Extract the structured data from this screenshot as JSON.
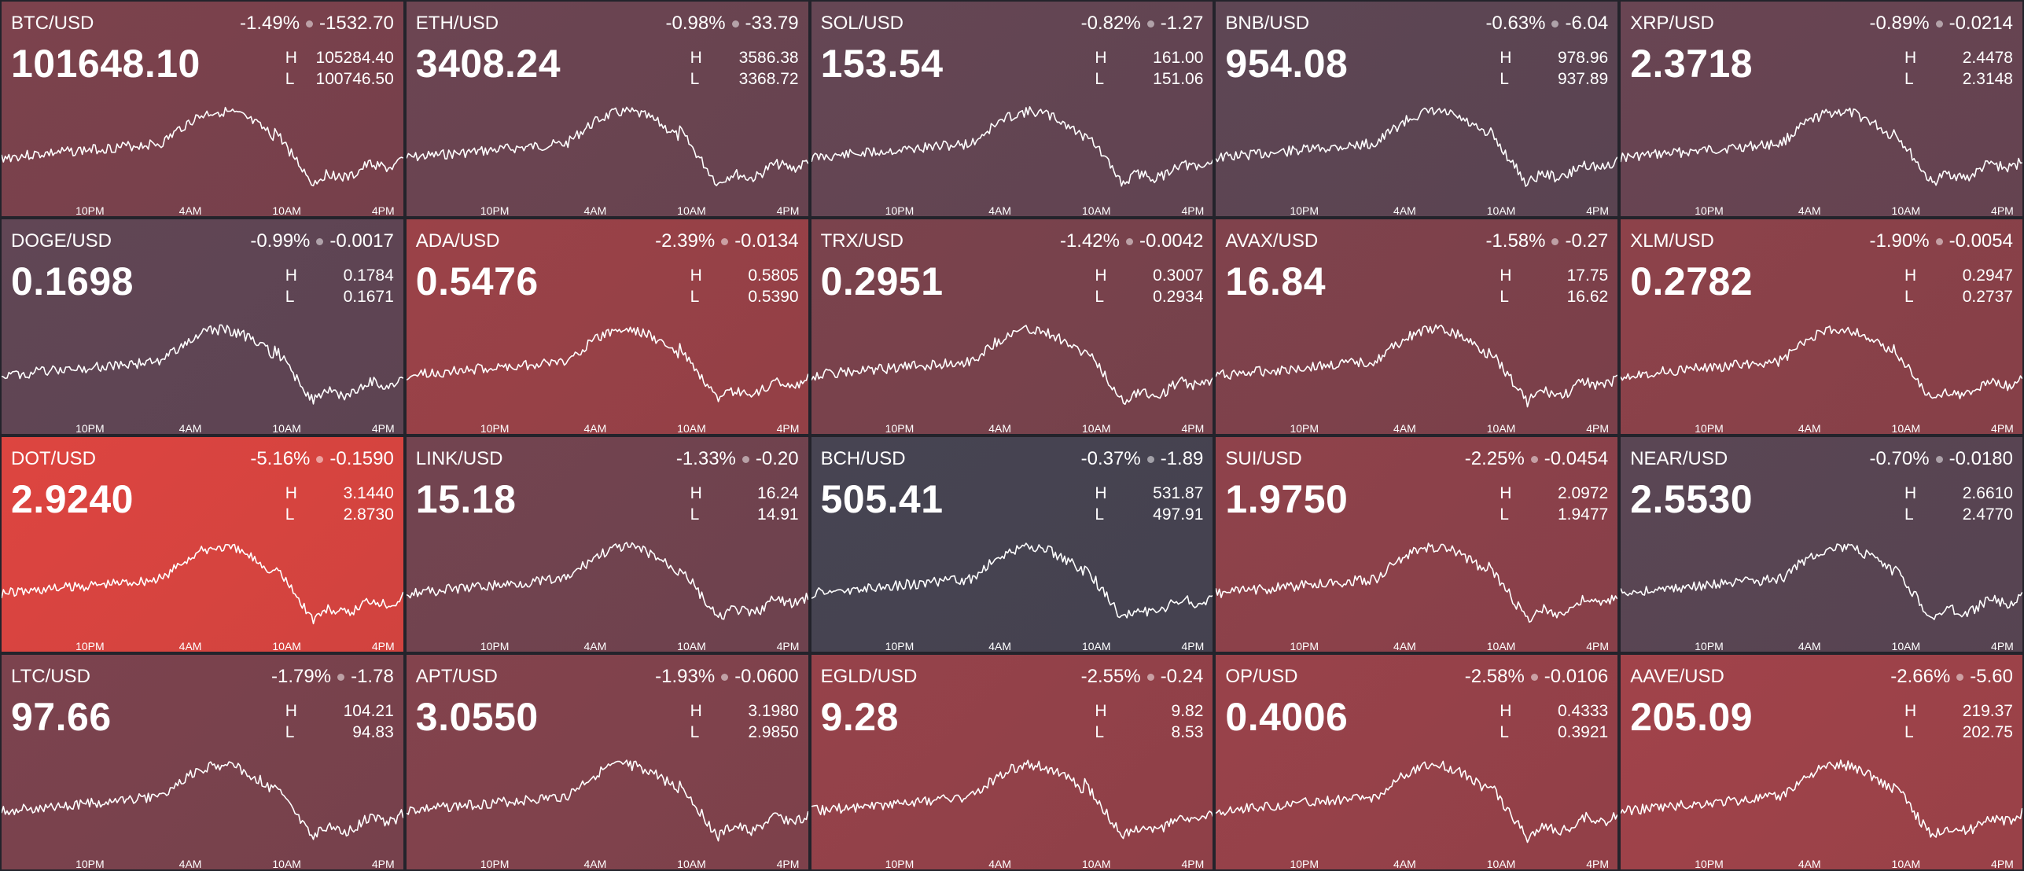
{
  "time_ticks": [
    "10PM",
    "4AM",
    "10AM",
    "4PM"
  ],
  "tiles": [
    {
      "symbol": "BTC/USD",
      "pct": "-1.49%",
      "change": "-1532.70",
      "price": "101648.10",
      "high": "H",
      "high_value": "105284.40",
      "low": "L",
      "low_value": "100746.50",
      "color": "#7c424d",
      "seed": 3
    },
    {
      "symbol": "ETH/USD",
      "pct": "-0.98%",
      "change": "-33.79",
      "price": "3408.24",
      "high": "H",
      "high_value": "3586.38",
      "low": "L",
      "low_value": "3368.72",
      "color": "#6c4552",
      "seed": 7
    },
    {
      "symbol": "SOL/USD",
      "pct": "-0.82%",
      "change": "-1.27",
      "price": "153.54",
      "high": "H",
      "high_value": "161.00",
      "low": "L",
      "low_value": "151.06",
      "color": "#654654",
      "seed": 11
    },
    {
      "symbol": "BNB/USD",
      "pct": "-0.63%",
      "change": "-6.04",
      "price": "954.08",
      "high": "H",
      "high_value": "978.96",
      "low": "L",
      "low_value": "937.89",
      "color": "#5e4654",
      "seed": 13
    },
    {
      "symbol": "XRP/USD",
      "pct": "-0.89%",
      "change": "-0.0214",
      "price": "2.3718",
      "high": "H",
      "high_value": "2.4478",
      "low": "L",
      "low_value": "2.3148",
      "color": "#694553",
      "seed": 17
    },
    {
      "symbol": "DOGE/USD",
      "pct": "-0.99%",
      "change": "-0.0017",
      "price": "0.1698",
      "high": "H",
      "high_value": "0.1784",
      "low": "L",
      "low_value": "0.1671",
      "color": "#614655",
      "seed": 19
    },
    {
      "symbol": "ADA/USD",
      "pct": "-2.39%",
      "change": "-0.0134",
      "price": "0.5476",
      "high": "H",
      "high_value": "0.5805",
      "low": "L",
      "low_value": "0.5390",
      "color": "#9b4248",
      "seed": 23
    },
    {
      "symbol": "TRX/USD",
      "pct": "-1.42%",
      "change": "-0.0042",
      "price": "0.2951",
      "high": "H",
      "high_value": "0.3007",
      "low": "L",
      "low_value": "0.2934",
      "color": "#7b434d",
      "seed": 29
    },
    {
      "symbol": "AVAX/USD",
      "pct": "-1.58%",
      "change": "-0.27",
      "price": "16.84",
      "high": "H",
      "high_value": "17.75",
      "low": "L",
      "low_value": "16.62",
      "color": "#80424c",
      "seed": 31
    },
    {
      "symbol": "XLM/USD",
      "pct": "-1.90%",
      "change": "-0.0054",
      "price": "0.2782",
      "high": "H",
      "high_value": "0.2947",
      "low": "L",
      "low_value": "0.2737",
      "color": "#8d424a",
      "seed": 37
    },
    {
      "symbol": "DOT/USD",
      "pct": "-5.16%",
      "change": "-0.1590",
      "price": "2.9240",
      "high": "H",
      "high_value": "3.1440",
      "low": "L",
      "low_value": "2.8730",
      "color": "#dd4540",
      "seed": 41
    },
    {
      "symbol": "LINK/USD",
      "pct": "-1.33%",
      "change": "-0.20",
      "price": "15.18",
      "high": "H",
      "high_value": "16.24",
      "low": "L",
      "low_value": "14.91",
      "color": "#734450",
      "seed": 43
    },
    {
      "symbol": "BCH/USD",
      "pct": "-0.37%",
      "change": "-1.89",
      "price": "505.41",
      "high": "H",
      "high_value": "531.87",
      "low": "L",
      "low_value": "497.91",
      "color": "#474452",
      "seed": 47
    },
    {
      "symbol": "SUI/USD",
      "pct": "-2.25%",
      "change": "-0.0454",
      "price": "1.9750",
      "high": "H",
      "high_value": "2.0972",
      "low": "L",
      "low_value": "1.9477",
      "color": "#8f424b",
      "seed": 53
    },
    {
      "symbol": "NEAR/USD",
      "pct": "-0.70%",
      "change": "-0.0180",
      "price": "2.5530",
      "high": "H",
      "high_value": "2.6610",
      "low": "L",
      "low_value": "2.4770",
      "color": "#5a4654",
      "seed": 59
    },
    {
      "symbol": "LTC/USD",
      "pct": "-1.79%",
      "change": "-1.78",
      "price": "97.66",
      "high": "H",
      "high_value": "104.21",
      "low": "L",
      "low_value": "94.83",
      "color": "#7c434e",
      "seed": 61
    },
    {
      "symbol": "APT/USD",
      "pct": "-1.93%",
      "change": "-0.0600",
      "price": "3.0550",
      "high": "H",
      "high_value": "3.1980",
      "low": "L",
      "low_value": "2.9850",
      "color": "#83434d",
      "seed": 67
    },
    {
      "symbol": "EGLD/USD",
      "pct": "-2.55%",
      "change": "-0.24",
      "price": "9.28",
      "high": "H",
      "high_value": "9.82",
      "low": "L",
      "low_value": "8.53",
      "color": "#96424a",
      "seed": 71
    },
    {
      "symbol": "OP/USD",
      "pct": "-2.58%",
      "change": "-0.0106",
      "price": "0.4006",
      "high": "H",
      "high_value": "0.4333",
      "low": "L",
      "low_value": "0.3921",
      "color": "#99424a",
      "seed": 73
    },
    {
      "symbol": "AAVE/USD",
      "pct": "-2.66%",
      "change": "-5.60",
      "price": "205.09",
      "high": "H",
      "high_value": "219.37",
      "low": "L",
      "low_value": "202.75",
      "color": "#a1434a",
      "seed": 79
    }
  ]
}
